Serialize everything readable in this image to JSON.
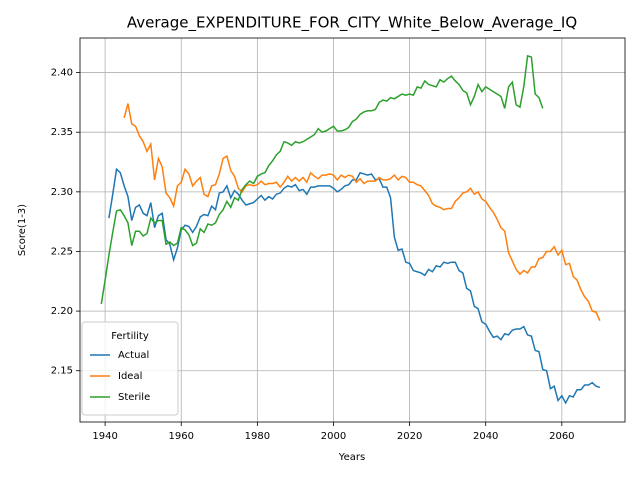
{
  "chart_data": {
    "type": "line",
    "title": "Average_EXPENDITURE_FOR_CITY_White_Below_Average_IQ",
    "x_label": "Years",
    "y_label": "Score(1-3)",
    "legend_title": "Fertility",
    "legend_position": "lower left",
    "grid": true,
    "xlim": [
      1933.4,
      2076.6
    ],
    "ylim": [
      2.107,
      2.429
    ],
    "xticks": [
      1940,
      1960,
      1980,
      2000,
      2020,
      2040,
      2060
    ],
    "yticks": [
      2.15,
      {
        "value": 2.2,
        "label": "2.20"
      },
      2.25,
      {
        "value": 2.3,
        "label": "2.30"
      },
      2.35,
      {
        "value": 2.4,
        "label": "2.40"
      }
    ],
    "series": [
      {
        "name": "Actual",
        "color": "#1f77b4",
        "x": [
          1941,
          1942,
          1943,
          1944,
          1945,
          1946,
          1947,
          1948,
          1949,
          1950,
          1951,
          1952,
          1953,
          1954,
          1955,
          1956,
          1957,
          1958,
          1959,
          1960,
          1961,
          1962,
          1963,
          1964,
          1965,
          1966,
          1967,
          1968,
          1969,
          1970,
          1971,
          1972,
          1973,
          1974,
          1975,
          1976,
          1977,
          1978,
          1979,
          1980,
          1981,
          1982,
          1983,
          1984,
          1985,
          1986,
          1987,
          1988,
          1989,
          1990,
          1991,
          1992,
          1993,
          1994,
          1995,
          1996,
          1997,
          1998,
          1999,
          2000,
          2001,
          2002,
          2003,
          2004,
          2005,
          2006,
          2007,
          2008,
          2009,
          2010,
          2011,
          2012,
          2013,
          2014,
          2015,
          2016,
          2017,
          2018,
          2019,
          2020,
          2021,
          2022,
          2023,
          2024,
          2025,
          2026,
          2027,
          2028,
          2029,
          2030,
          2031,
          2032,
          2033,
          2034,
          2035,
          2036,
          2037,
          2038,
          2039,
          2040,
          2041,
          2042,
          2043,
          2044,
          2045,
          2046,
          2047,
          2048,
          2049,
          2050,
          2051,
          2052,
          2053,
          2054,
          2055,
          2056,
          2057,
          2058,
          2059,
          2060,
          2061,
          2062,
          2063,
          2064,
          2065,
          2066,
          2067,
          2068,
          2069,
          2070
        ],
        "values": [
          2.278,
          2.298,
          2.319,
          2.316,
          2.305,
          2.296,
          2.276,
          2.287,
          2.289,
          2.282,
          2.28,
          2.291,
          2.27,
          2.28,
          2.282,
          2.26,
          2.256,
          2.243,
          2.253,
          2.268,
          2.272,
          2.271,
          2.266,
          2.271,
          2.279,
          2.281,
          2.28,
          2.288,
          2.285,
          2.299,
          2.3,
          2.305,
          2.295,
          2.301,
          2.298,
          2.293,
          2.289,
          2.29,
          2.291,
          2.294,
          2.297,
          2.293,
          2.296,
          2.294,
          2.298,
          2.299,
          2.303,
          2.305,
          2.304,
          2.306,
          2.301,
          2.302,
          2.298,
          2.304,
          2.304,
          2.305,
          2.305,
          2.305,
          2.305,
          2.303,
          2.3,
          2.302,
          2.305,
          2.306,
          2.31,
          2.31,
          2.316,
          2.315,
          2.314,
          2.315,
          2.31,
          2.311,
          2.304,
          2.304,
          2.295,
          2.262,
          2.251,
          2.252,
          2.241,
          2.24,
          2.234,
          2.233,
          2.232,
          2.23,
          2.235,
          2.233,
          2.238,
          2.237,
          2.241,
          2.24,
          2.241,
          2.241,
          2.234,
          2.232,
          2.219,
          2.217,
          2.204,
          2.202,
          2.191,
          2.189,
          2.183,
          2.178,
          2.179,
          2.176,
          2.181,
          2.18,
          2.184,
          2.185,
          2.185,
          2.187,
          2.18,
          2.179,
          2.167,
          2.166,
          2.151,
          2.15,
          2.135,
          2.137,
          2.125,
          2.129,
          2.123,
          2.129,
          2.128,
          2.134,
          2.134,
          2.138,
          2.138,
          2.14,
          2.137,
          2.136
        ]
      },
      {
        "name": "Ideal",
        "color": "#ff7f0e",
        "x": [
          1945,
          1946,
          1947,
          1948,
          1949,
          1950,
          1951,
          1952,
          1953,
          1954,
          1955,
          1956,
          1957,
          1958,
          1959,
          1960,
          1961,
          1962,
          1963,
          1964,
          1965,
          1966,
          1967,
          1968,
          1969,
          1970,
          1971,
          1972,
          1973,
          1974,
          1975,
          1976,
          1977,
          1978,
          1979,
          1980,
          1981,
          1982,
          1983,
          1984,
          1985,
          1986,
          1987,
          1988,
          1989,
          1990,
          1991,
          1992,
          1993,
          1994,
          1995,
          1996,
          1997,
          1998,
          1999,
          2000,
          2001,
          2002,
          2003,
          2004,
          2005,
          2006,
          2007,
          2008,
          2009,
          2010,
          2011,
          2012,
          2013,
          2014,
          2015,
          2016,
          2017,
          2018,
          2019,
          2020,
          2021,
          2022,
          2023,
          2024,
          2025,
          2026,
          2027,
          2028,
          2029,
          2030,
          2031,
          2032,
          2033,
          2034,
          2035,
          2036,
          2037,
          2038,
          2039,
          2040,
          2041,
          2042,
          2043,
          2044,
          2045,
          2046,
          2047,
          2048,
          2049,
          2050,
          2051,
          2052,
          2053,
          2054,
          2055,
          2056,
          2057,
          2058,
          2059,
          2060,
          2061,
          2062,
          2063,
          2064,
          2065,
          2066,
          2067,
          2068,
          2069,
          2070
        ],
        "values": [
          2.362,
          2.374,
          2.357,
          2.355,
          2.347,
          2.342,
          2.334,
          2.34,
          2.31,
          2.328,
          2.321,
          2.299,
          2.295,
          2.288,
          2.305,
          2.308,
          2.319,
          2.315,
          2.305,
          2.309,
          2.312,
          2.298,
          2.296,
          2.305,
          2.306,
          2.315,
          2.328,
          2.33,
          2.318,
          2.313,
          2.303,
          2.3,
          2.305,
          2.306,
          2.305,
          2.306,
          2.309,
          2.306,
          2.307,
          2.307,
          2.308,
          2.304,
          2.308,
          2.313,
          2.309,
          2.312,
          2.309,
          2.312,
          2.308,
          2.316,
          2.313,
          2.311,
          2.314,
          2.314,
          2.315,
          2.314,
          2.31,
          2.314,
          2.312,
          2.314,
          2.313,
          2.308,
          2.311,
          2.307,
          2.309,
          2.309,
          2.309,
          2.312,
          2.31,
          2.31,
          2.311,
          2.314,
          2.31,
          2.313,
          2.312,
          2.308,
          2.308,
          2.306,
          2.305,
          2.301,
          2.297,
          2.29,
          2.288,
          2.287,
          2.285,
          2.286,
          2.286,
          2.292,
          2.295,
          2.299,
          2.3,
          2.303,
          2.298,
          2.3,
          2.294,
          2.292,
          2.287,
          2.283,
          2.277,
          2.27,
          2.267,
          2.249,
          2.242,
          2.235,
          2.231,
          2.234,
          2.232,
          2.237,
          2.237,
          2.244,
          2.245,
          2.25,
          2.25,
          2.254,
          2.247,
          2.251,
          2.239,
          2.24,
          2.229,
          2.226,
          2.218,
          2.212,
          2.208,
          2.2,
          2.199,
          2.192
        ]
      },
      {
        "name": "Sterile",
        "color": "#2ca02c",
        "x": [
          1939,
          1940,
          1941,
          1942,
          1943,
          1944,
          1945,
          1946,
          1947,
          1948,
          1949,
          1950,
          1951,
          1952,
          1953,
          1954,
          1955,
          1956,
          1957,
          1958,
          1959,
          1960,
          1961,
          1962,
          1963,
          1964,
          1965,
          1966,
          1967,
          1968,
          1969,
          1970,
          1971,
          1972,
          1973,
          1974,
          1975,
          1976,
          1977,
          1978,
          1979,
          1980,
          1981,
          1982,
          1983,
          1984,
          1985,
          1986,
          1987,
          1988,
          1989,
          1990,
          1991,
          1992,
          1993,
          1994,
          1995,
          1996,
          1997,
          1998,
          1999,
          2000,
          2001,
          2002,
          2003,
          2004,
          2005,
          2006,
          2007,
          2008,
          2009,
          2010,
          2011,
          2012,
          2013,
          2014,
          2015,
          2016,
          2017,
          2018,
          2019,
          2020,
          2021,
          2022,
          2023,
          2024,
          2025,
          2026,
          2027,
          2028,
          2029,
          2030,
          2031,
          2032,
          2033,
          2034,
          2035,
          2036,
          2037,
          2038,
          2039,
          2040,
          2041,
          2042,
          2043,
          2044,
          2045,
          2046,
          2047,
          2048,
          2049,
          2050,
          2051,
          2052,
          2053,
          2054,
          2055
        ],
        "values": [
          2.206,
          2.226,
          2.247,
          2.266,
          2.284,
          2.285,
          2.28,
          2.274,
          2.255,
          2.267,
          2.267,
          2.263,
          2.265,
          2.278,
          2.274,
          2.276,
          2.276,
          2.256,
          2.258,
          2.255,
          2.257,
          2.27,
          2.268,
          2.264,
          2.255,
          2.257,
          2.269,
          2.266,
          2.273,
          2.272,
          2.274,
          2.281,
          2.285,
          2.292,
          2.287,
          2.295,
          2.293,
          2.302,
          2.306,
          2.309,
          2.307,
          2.313,
          2.315,
          2.316,
          2.322,
          2.326,
          2.331,
          2.334,
          2.342,
          2.341,
          2.339,
          2.342,
          2.341,
          2.342,
          2.344,
          2.346,
          2.348,
          2.353,
          2.35,
          2.351,
          2.353,
          2.355,
          2.351,
          2.351,
          2.352,
          2.354,
          2.359,
          2.361,
          2.365,
          2.367,
          2.368,
          2.368,
          2.369,
          2.375,
          2.377,
          2.376,
          2.379,
          2.378,
          2.38,
          2.382,
          2.381,
          2.382,
          2.381,
          2.388,
          2.387,
          2.393,
          2.39,
          2.389,
          2.388,
          2.394,
          2.392,
          2.395,
          2.397,
          2.393,
          2.39,
          2.385,
          2.383,
          2.373,
          2.38,
          2.39,
          2.384,
          2.388,
          2.386,
          2.384,
          2.382,
          2.38,
          2.37,
          2.388,
          2.392,
          2.373,
          2.371,
          2.388,
          2.414,
          2.413,
          2.382,
          2.379,
          2.37
        ]
      }
    ]
  }
}
